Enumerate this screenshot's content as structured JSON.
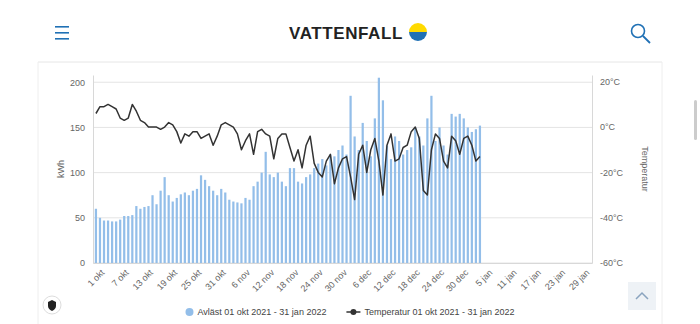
{
  "header": {
    "title": "VATTENFALL"
  },
  "chart_data": {
    "type": "bar",
    "y_label": "kWh",
    "y2_label": "Temperatur",
    "categories": [
      "1 okt",
      null,
      null,
      null,
      null,
      null,
      "7 okt",
      null,
      null,
      null,
      null,
      null,
      "13 okt",
      null,
      null,
      null,
      null,
      null,
      "19 okt",
      null,
      null,
      null,
      null,
      null,
      "25 okt",
      null,
      null,
      null,
      null,
      null,
      "31 okt",
      null,
      null,
      null,
      null,
      null,
      "6 nov",
      null,
      null,
      null,
      null,
      null,
      "12 nov",
      null,
      null,
      null,
      null,
      null,
      "18 nov",
      null,
      null,
      null,
      null,
      null,
      "24 nov",
      null,
      null,
      null,
      null,
      null,
      "30 nov",
      null,
      null,
      null,
      null,
      null,
      "6 dec",
      null,
      null,
      null,
      null,
      null,
      "12 dec",
      null,
      null,
      null,
      null,
      null,
      "18 dec",
      null,
      null,
      null,
      null,
      null,
      "24 dec",
      null,
      null,
      null,
      null,
      null,
      "30 dec",
      null,
      null,
      null,
      null,
      null,
      "5 jan",
      null,
      null,
      null,
      null,
      null,
      "11 jan",
      null,
      null,
      null,
      null,
      null,
      "17 jan",
      null,
      null,
      null,
      null,
      null,
      "23 jan",
      null,
      null,
      null,
      null,
      null,
      "29 jan",
      null,
      null
    ],
    "series": [
      {
        "name": "Avläst 01 okt 2021 - 31 jan 2022",
        "type": "bar",
        "color": "#93bee9",
        "values": [
          60,
          50,
          47,
          47,
          46,
          46,
          48,
          52,
          52,
          53,
          63,
          60,
          62,
          63,
          75,
          65,
          80,
          95,
          75,
          68,
          72,
          76,
          78,
          75,
          80,
          82,
          97,
          92,
          85,
          80,
          75,
          82,
          78,
          70,
          68,
          67,
          66,
          72,
          70,
          85,
          90,
          100,
          123,
          98,
          95,
          100,
          90,
          85,
          105,
          105,
          90,
          88,
          95,
          98,
          105,
          110,
          115,
          108,
          120,
          118,
          125,
          130,
          120,
          185,
          140,
          125,
          155,
          135,
          118,
          160,
          205,
          180,
          130,
          115,
          140,
          135,
          120,
          125,
          128,
          150,
          140,
          130,
          160,
          185,
          135,
          150,
          130,
          120,
          165,
          162,
          165,
          160,
          150,
          145,
          148,
          152,
          null,
          null,
          null,
          null,
          null,
          null,
          null,
          null,
          null,
          null,
          null,
          null,
          null,
          null,
          null,
          null,
          null,
          null,
          null,
          null,
          null,
          null,
          null,
          null,
          null,
          null,
          null
        ]
      },
      {
        "name": "Temperatur 01 okt 2021 - 31 jan 2022",
        "type": "line",
        "axis": "y2",
        "color": "#333333",
        "values": [
          6,
          9,
          9,
          10,
          9,
          8,
          4,
          3,
          4,
          10,
          7,
          3,
          2,
          0,
          0,
          0,
          -1,
          0,
          2,
          1,
          -2,
          -7,
          -3,
          -4,
          -2,
          -2,
          -5,
          -4,
          -3,
          -8,
          -4,
          1,
          2,
          1,
          0,
          -3,
          -10,
          -6,
          -3,
          -12,
          -2,
          -1,
          -3,
          -4,
          -14,
          -5,
          -3,
          -3,
          -9,
          -15,
          -10,
          -18,
          -8,
          -4,
          -16,
          -20,
          -22,
          -15,
          -12,
          -25,
          -18,
          -14,
          -13,
          -22,
          -32,
          -12,
          -8,
          -20,
          -10,
          -5,
          -15,
          -30,
          -8,
          -3,
          -15,
          -14,
          -9,
          -8,
          -2,
          0,
          -5,
          -28,
          -30,
          -10,
          -3,
          -5,
          -15,
          -18,
          -4,
          -6,
          -12,
          -5,
          -4,
          -8,
          -15,
          -13,
          null,
          null,
          null,
          null,
          null,
          null,
          null,
          null,
          null,
          null,
          null,
          null,
          null,
          null,
          null,
          null,
          null,
          null,
          null,
          null,
          null,
          null,
          null,
          null,
          null,
          null,
          null
        ]
      }
    ],
    "ylim": [
      0,
      208
    ],
    "yticks": [
      0,
      50,
      100,
      150,
      200
    ],
    "y2lim": [
      -60,
      23
    ],
    "y2ticks": [
      {
        "value": -60,
        "label": "-60°C"
      },
      {
        "value": -40,
        "label": "-40°C"
      },
      {
        "value": -20,
        "label": "-20°C"
      },
      {
        "value": 0,
        "label": "0°C"
      },
      {
        "value": 20,
        "label": "20°C"
      }
    ],
    "grid": true,
    "legend": "bottom"
  }
}
